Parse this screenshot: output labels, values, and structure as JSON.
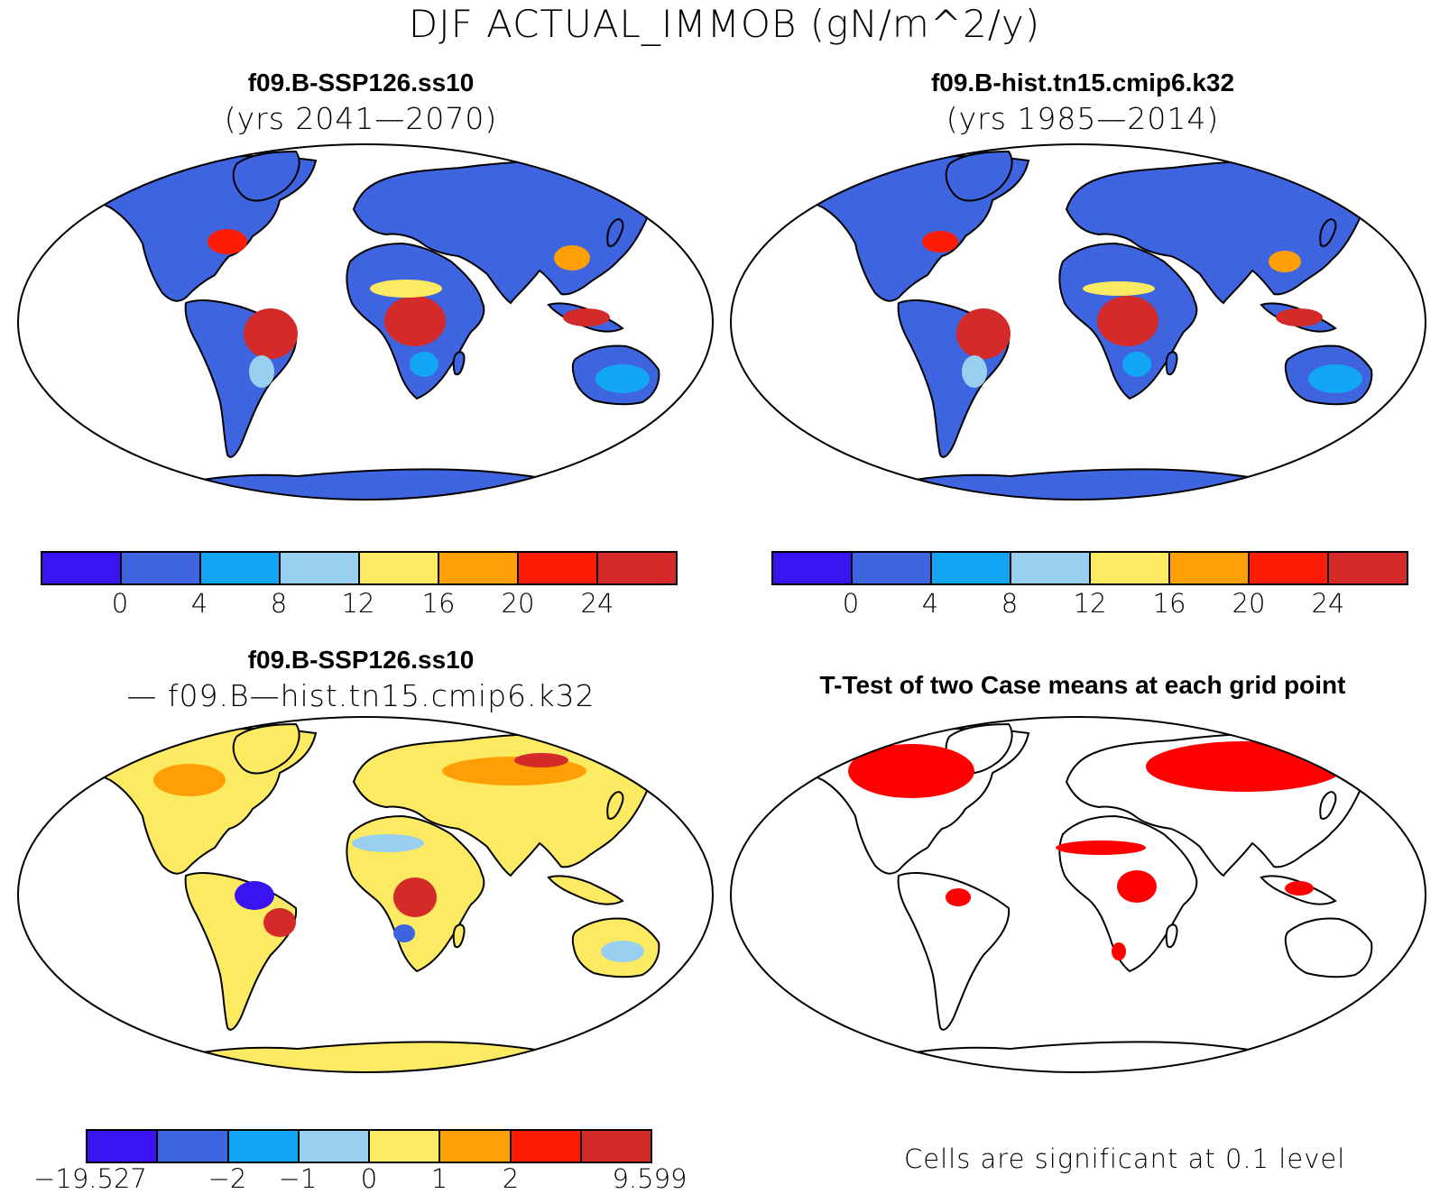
{
  "title": "DJF ACTUAL_IMMOB (gN/m^2/y)",
  "colors": {
    "levels": [
      "#3a14f0",
      "#3e64df",
      "#12a6f4",
      "#9ad0ef",
      "#fbea62",
      "#fd9f05",
      "#ff1c06",
      "#d42b2a"
    ],
    "ocean": "#ffffff",
    "signif": "#ff0000",
    "coast": "#000000"
  },
  "panels": [
    {
      "id": "case1",
      "title": "f09.B-SSP126.ss10",
      "subtitle": "(yrs 2041—2070)",
      "colorbar_ticks": [
        "0",
        "4",
        "8",
        "12",
        "16",
        "20",
        "24"
      ],
      "fill": "blue-dominant"
    },
    {
      "id": "case2",
      "title": "f09.B-hist.tn15.cmip6.k32",
      "subtitle": "(yrs 1985—2014)",
      "colorbar_ticks": [
        "0",
        "4",
        "8",
        "12",
        "16",
        "20",
        "24"
      ],
      "fill": "blue-dominant"
    },
    {
      "id": "diff",
      "title": "f09.B-SSP126.ss10",
      "subtitle": "— f09.B—hist.tn15.cmip6.k32",
      "colorbar_ticks": [
        "−19.527",
        "−2",
        "−1",
        "0",
        "1",
        "2",
        "9.599"
      ],
      "fill": "yellow-dominant"
    },
    {
      "id": "ttest",
      "title": "T-Test of two Case means at each grid point",
      "note": "Cells are significant at 0.1 level",
      "fill": "significance"
    }
  ]
}
